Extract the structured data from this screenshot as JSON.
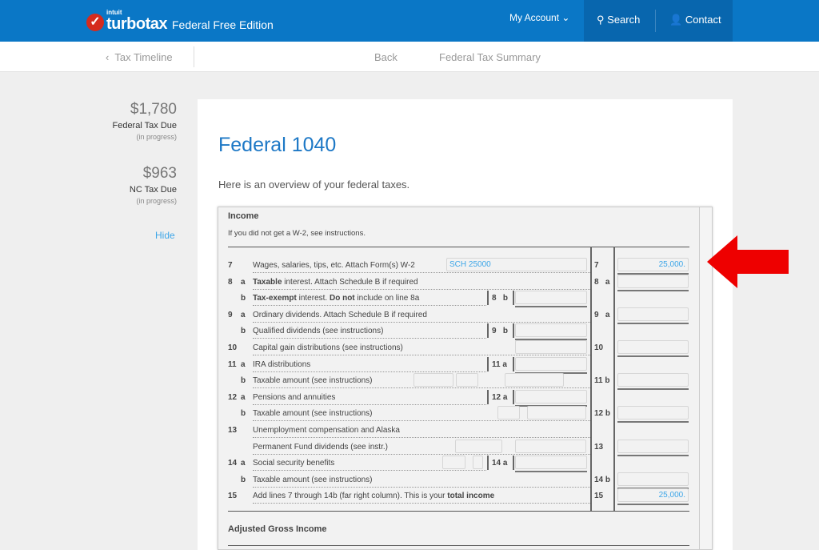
{
  "header": {
    "brand_small": "intuit",
    "brand": "turbotax",
    "edition": "Federal Free Edition",
    "my_account": "My Account",
    "search": "Search",
    "contact": "Contact"
  },
  "subnav": {
    "tax_timeline": "Tax Timeline",
    "back": "Back",
    "summary": "Federal Tax Summary"
  },
  "sidebar": {
    "federal": {
      "amount": "$1,780",
      "label": "Federal Tax Due",
      "status": "(in progress)"
    },
    "state": {
      "amount": "$963",
      "label": "NC Tax Due",
      "status": "(in progress)"
    },
    "hide": "Hide"
  },
  "page": {
    "title": "Federal 1040",
    "intro": "Here is an overview of your federal taxes."
  },
  "form": {
    "section": "Income",
    "note": "If you did not get a W-2, see instructions.",
    "section2": "Adjusted Gross Income",
    "rows": [
      {
        "num": "7",
        "sub": "",
        "label": [
          {
            "t": "Wages, salaries, tips, etc. Attach Form(s) W-2"
          }
        ],
        "mid_label": "",
        "mid_value": "SCH 25000",
        "right_label": "7",
        "right_value": "25,000."
      },
      {
        "num": "8",
        "sub": "a",
        "label": [
          {
            "t": "Taxable",
            "b": true
          },
          {
            "t": " interest. Attach Schedule B if required"
          }
        ],
        "mid_label": "",
        "right_label": "8   a",
        "right_value": ""
      },
      {
        "num": "",
        "sub": "b",
        "label": [
          {
            "t": "Tax-exempt",
            "b": true
          },
          {
            "t": " interest. "
          },
          {
            "t": "Do not",
            "b": true
          },
          {
            "t": " include on line 8a"
          }
        ],
        "mid_label": "8   b",
        "right_label": "",
        "right_value": ""
      },
      {
        "num": "9",
        "sub": "a",
        "label": [
          {
            "t": "Ordinary dividends. Attach Schedule B if required"
          }
        ],
        "mid_label": "",
        "right_label": "9   a",
        "right_value": ""
      },
      {
        "num": "",
        "sub": "b",
        "label": [
          {
            "t": "Qualified dividends (see instructions)"
          }
        ],
        "mid_label": "9   b",
        "right_label": "",
        "right_value": ""
      },
      {
        "num": "10",
        "sub": "",
        "label": [
          {
            "t": "Capital gain distributions (see instructions)"
          }
        ],
        "mid_label": "",
        "right_label": "10",
        "right_value": ""
      },
      {
        "num": "11",
        "sub": "a",
        "label": [
          {
            "t": "IRA distributions"
          }
        ],
        "mid_label": "11 a",
        "right_label": "",
        "right_value": ""
      },
      {
        "num": "",
        "sub": "b",
        "label": [
          {
            "t": "Taxable amount (see instructions)"
          }
        ],
        "mid_label": "",
        "right_label": "11 b",
        "right_value": ""
      },
      {
        "num": "12",
        "sub": "a",
        "label": [
          {
            "t": "Pensions and annuities"
          }
        ],
        "mid_label": "12 a",
        "right_label": "",
        "right_value": ""
      },
      {
        "num": "",
        "sub": "b",
        "label": [
          {
            "t": "Taxable amount (see instructions)"
          }
        ],
        "mid_label": "",
        "right_label": "12 b",
        "right_value": ""
      },
      {
        "num": "13",
        "sub": "",
        "label": [
          {
            "t": "Unemployment compensation and Alaska"
          }
        ],
        "mid_label": "",
        "right_label": "",
        "right_value": ""
      },
      {
        "num": "",
        "sub": "",
        "label": [
          {
            "t": "Permanent Fund dividends (see instr.)"
          }
        ],
        "mid_label": "",
        "right_label": "13",
        "right_value": ""
      },
      {
        "num": "14",
        "sub": "a",
        "label": [
          {
            "t": "Social security benefits"
          }
        ],
        "mid_label": "14 a",
        "right_label": "",
        "right_value": ""
      },
      {
        "num": "",
        "sub": "b",
        "label": [
          {
            "t": "Taxable amount (see instructions)"
          }
        ],
        "mid_label": "",
        "right_label": "14 b",
        "right_value": ""
      },
      {
        "num": "15",
        "sub": "",
        "label": [
          {
            "t": "Add lines 7 through 14b (far right column). This is your "
          },
          {
            "t": "total income",
            "b": true
          }
        ],
        "mid_label": "",
        "right_label": "15",
        "right_value": "25,000."
      }
    ]
  },
  "colors": {
    "header": "#0a77c6",
    "accent": "#1d78c6",
    "arrow": "#ee0000",
    "value": "#3da6e8"
  }
}
